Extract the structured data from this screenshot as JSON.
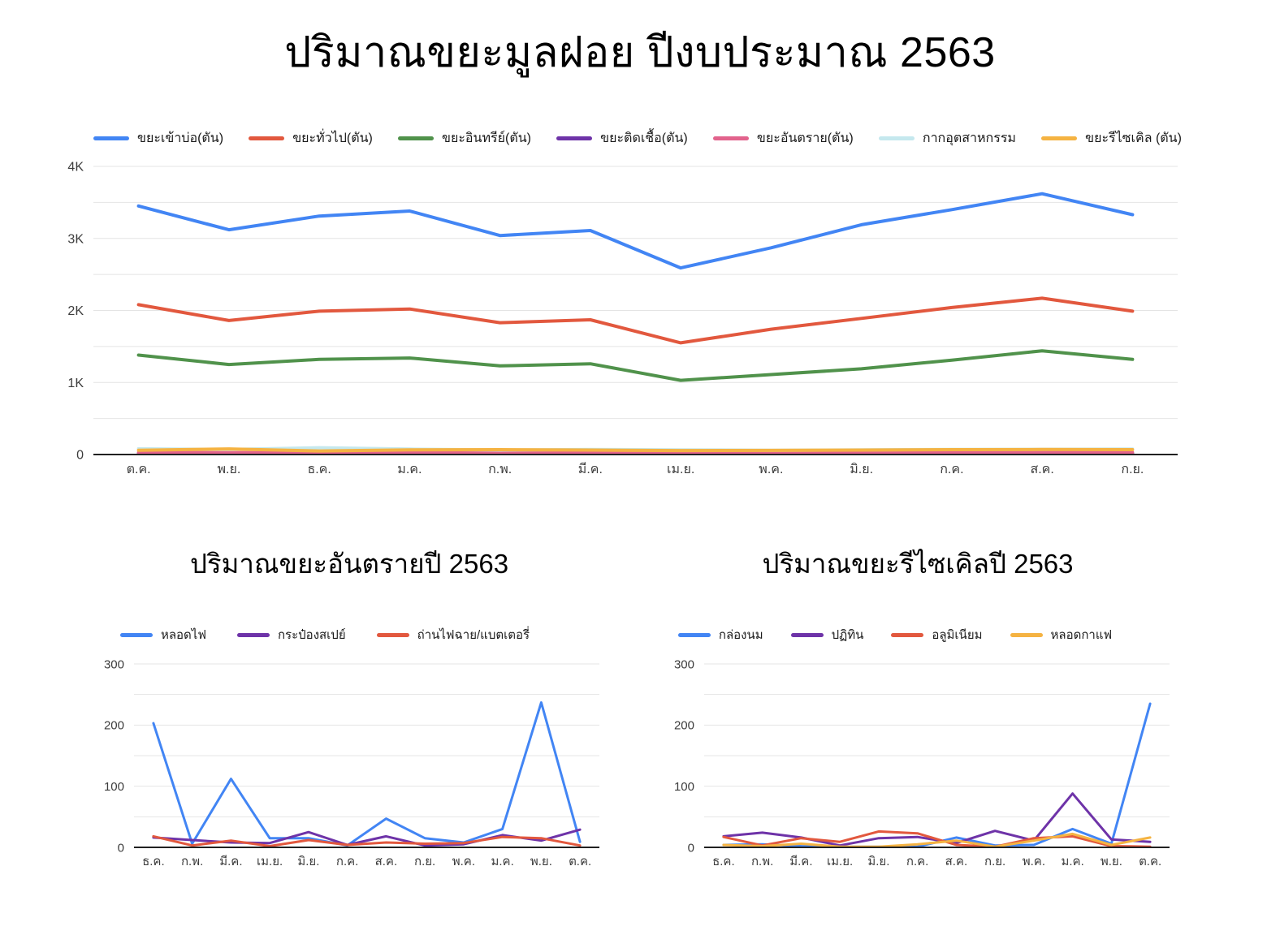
{
  "page": {
    "title": "ปริมาณขยะมูลฝอย ปีงบประมาณ 2563",
    "background": "#ffffff"
  },
  "chart_data": [
    {
      "id": "main",
      "type": "line",
      "title": "ปริมาณขยะมูลฝอย ปีงบประมาณ 2563",
      "legend_position": "top",
      "grid": true,
      "categories": [
        "ต.ค.",
        "พ.ย.",
        "ธ.ค.",
        "ม.ค.",
        "ก.พ.",
        "มี.ค.",
        "เม.ย.",
        "พ.ค.",
        "มิ.ย.",
        "ก.ค.",
        "ส.ค.",
        "ก.ย."
      ],
      "ylim": [
        0,
        4000
      ],
      "minor_step": 500,
      "yticks": [
        {
          "label": "0",
          "value": 0
        },
        {
          "label": "1K",
          "value": 1000
        },
        {
          "label": "2K",
          "value": 2000
        },
        {
          "label": "3K",
          "value": 3000
        },
        {
          "label": "4K",
          "value": 4000
        }
      ],
      "series": [
        {
          "name": "ขยะเข้าบ่อ(ตัน)",
          "color": "#4285F4",
          "values": [
            3450,
            3120,
            3310,
            3380,
            3040,
            3110,
            2590,
            2870,
            3190,
            3400,
            3620,
            3330
          ]
        },
        {
          "name": "ขยะทั่วไป(ตัน)",
          "color": "#E2583E",
          "values": [
            2080,
            1860,
            1990,
            2020,
            1830,
            1870,
            1550,
            1740,
            1890,
            2040,
            2170,
            1990
          ]
        },
        {
          "name": "ขยะอินทรีย์(ตัน)",
          "color": "#50924B",
          "values": [
            1380,
            1250,
            1320,
            1340,
            1230,
            1260,
            1030,
            1110,
            1190,
            1310,
            1440,
            1320
          ]
        },
        {
          "name": "ขยะติดเชื้อ(ตัน)",
          "color": "#6E33A8",
          "values": [
            14,
            13,
            14,
            15,
            14,
            15,
            12,
            13,
            14,
            15,
            16,
            15
          ]
        },
        {
          "name": "ขยะอันตราย(ตัน)",
          "color": "#E2638C",
          "values": [
            28,
            26,
            27,
            28,
            26,
            28,
            24,
            25,
            26,
            28,
            30,
            28
          ]
        },
        {
          "name": "กากอุตสาหกรรม",
          "color": "#C5E8EE",
          "values": [
            80,
            70,
            95,
            75,
            62,
            70,
            65,
            60,
            64,
            70,
            72,
            76
          ]
        },
        {
          "name": "ขยะรีไซเคิล (ตัน)",
          "color": "#F5B342",
          "values": [
            60,
            78,
            50,
            64,
            68,
            62,
            55,
            58,
            62,
            68,
            70,
            68
          ]
        }
      ]
    },
    {
      "id": "hazard",
      "type": "line",
      "title": "ปริมาณขยะอันตรายปี 2563",
      "legend_position": "top",
      "grid": true,
      "categories": [
        "ธ.ค.",
        "ก.พ.",
        "มี.ค.",
        "เม.ย.",
        "มิ.ย.",
        "ก.ค.",
        "ส.ค.",
        "ก.ย.",
        "พ.ค.",
        "ม.ค.",
        "พ.ย.",
        "ต.ค."
      ],
      "ylim": [
        0,
        300
      ],
      "minor_step": 50,
      "yticks": [
        {
          "label": "0",
          "value": 0
        },
        {
          "label": "100",
          "value": 100
        },
        {
          "label": "200",
          "value": 200
        },
        {
          "label": "300",
          "value": 300
        }
      ],
      "series": [
        {
          "name": "หลอดไฟ",
          "color": "#4285F4",
          "values": [
            203,
            6,
            112,
            15,
            15,
            3,
            47,
            15,
            8,
            30,
            237,
            9
          ]
        },
        {
          "name": "กระป๋องสเปย์",
          "color": "#6E33A8",
          "values": [
            16,
            12,
            8,
            7,
            25,
            4,
            18,
            3,
            5,
            20,
            11,
            29
          ]
        },
        {
          "name": "ถ่านไฟฉาย/แบตเตอรี่",
          "color": "#E2583E",
          "values": [
            18,
            3,
            11,
            2,
            12,
            4,
            8,
            6,
            7,
            17,
            15,
            3
          ]
        }
      ]
    },
    {
      "id": "recycle",
      "type": "line",
      "title": "ปริมาณขยะรีไซเคิลปี 2563",
      "legend_position": "top",
      "grid": true,
      "categories": [
        "ธ.ค.",
        "ก.พ.",
        "มี.ค.",
        "เม.ย.",
        "มิ.ย.",
        "ก.ค.",
        "ส.ค.",
        "ก.ย.",
        "พ.ค.",
        "ม.ค.",
        "พ.ย.",
        "ต.ค."
      ],
      "ylim": [
        0,
        300
      ],
      "minor_step": 50,
      "yticks": [
        {
          "label": "0",
          "value": 0
        },
        {
          "label": "100",
          "value": 100
        },
        {
          "label": "200",
          "value": 200
        },
        {
          "label": "300",
          "value": 300
        }
      ],
      "series": [
        {
          "name": "กล่องนม",
          "color": "#4285F4",
          "values": [
            4,
            5,
            2,
            1,
            1,
            1,
            16,
            3,
            4,
            30,
            6,
            235
          ]
        },
        {
          "name": "ปฏิทิน",
          "color": "#6E33A8",
          "values": [
            18,
            24,
            16,
            3,
            15,
            17,
            7,
            27,
            11,
            88,
            13,
            9
          ]
        },
        {
          "name": "อลูมิเนียม",
          "color": "#E2583E",
          "values": [
            17,
            3,
            15,
            9,
            26,
            23,
            4,
            1,
            15,
            18,
            2,
            1
          ]
        },
        {
          "name": "หลอดกาแฟ",
          "color": "#F5B342",
          "values": [
            4,
            2,
            6,
            1,
            1,
            5,
            11,
            1,
            11,
            22,
            4,
            16
          ]
        }
      ]
    }
  ]
}
